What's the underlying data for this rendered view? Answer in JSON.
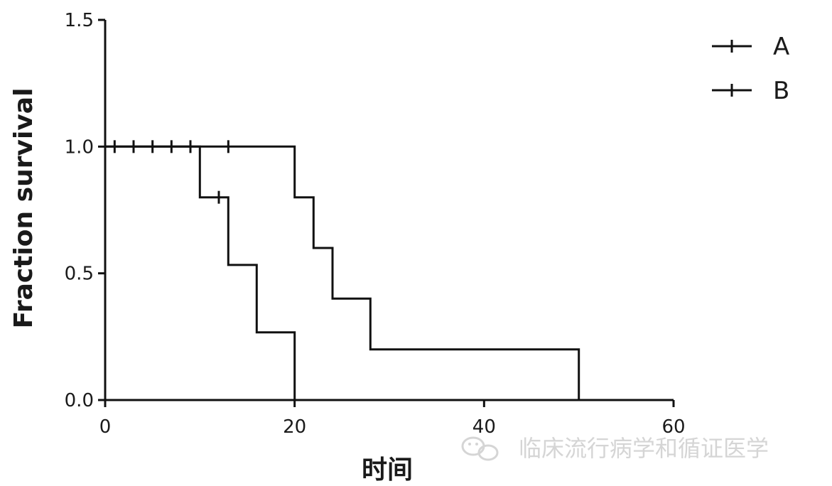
{
  "chart_data": {
    "type": "line",
    "subtype": "kaplan-meier",
    "ylabel": "Fraction survival",
    "xlabel": "时间",
    "xlim": [
      0,
      60
    ],
    "ylim": [
      0,
      1.5
    ],
    "x_ticks": [
      0,
      20,
      40,
      60
    ],
    "x_tick_labels": [
      "0",
      "20",
      "40",
      "60"
    ],
    "y_ticks": [
      0,
      0.5,
      1.0,
      1.5
    ],
    "y_tick_labels": [
      "0.0",
      "0.5",
      "1.0",
      "1.5"
    ],
    "grid": false,
    "legend_position": "top-right",
    "series": [
      {
        "name": "A",
        "color": "#111111",
        "steps": [
          [
            0,
            1.0
          ],
          [
            20,
            1.0
          ],
          [
            20,
            0.8
          ],
          [
            22,
            0.8
          ],
          [
            22,
            0.6
          ],
          [
            24,
            0.6
          ],
          [
            24,
            0.4
          ],
          [
            28,
            0.4
          ],
          [
            28,
            0.2
          ],
          [
            50,
            0.2
          ],
          [
            50,
            0.0
          ]
        ],
        "censored": [
          [
            1,
            1.0
          ],
          [
            3,
            1.0
          ],
          [
            5,
            1.0
          ],
          [
            7,
            1.0
          ],
          [
            9,
            1.0
          ],
          [
            13,
            1.0
          ]
        ]
      },
      {
        "name": "B",
        "color": "#111111",
        "steps": [
          [
            0,
            1.0
          ],
          [
            10,
            1.0
          ],
          [
            10,
            0.8
          ],
          [
            13,
            0.8
          ],
          [
            13,
            0.533
          ],
          [
            16,
            0.533
          ],
          [
            16,
            0.267
          ],
          [
            20,
            0.267
          ],
          [
            20,
            0.0
          ]
        ],
        "censored": [
          [
            12,
            0.8
          ]
        ]
      }
    ]
  },
  "watermark": {
    "text": "临床流行病学和循证医学",
    "icon": "wechat-icon"
  }
}
